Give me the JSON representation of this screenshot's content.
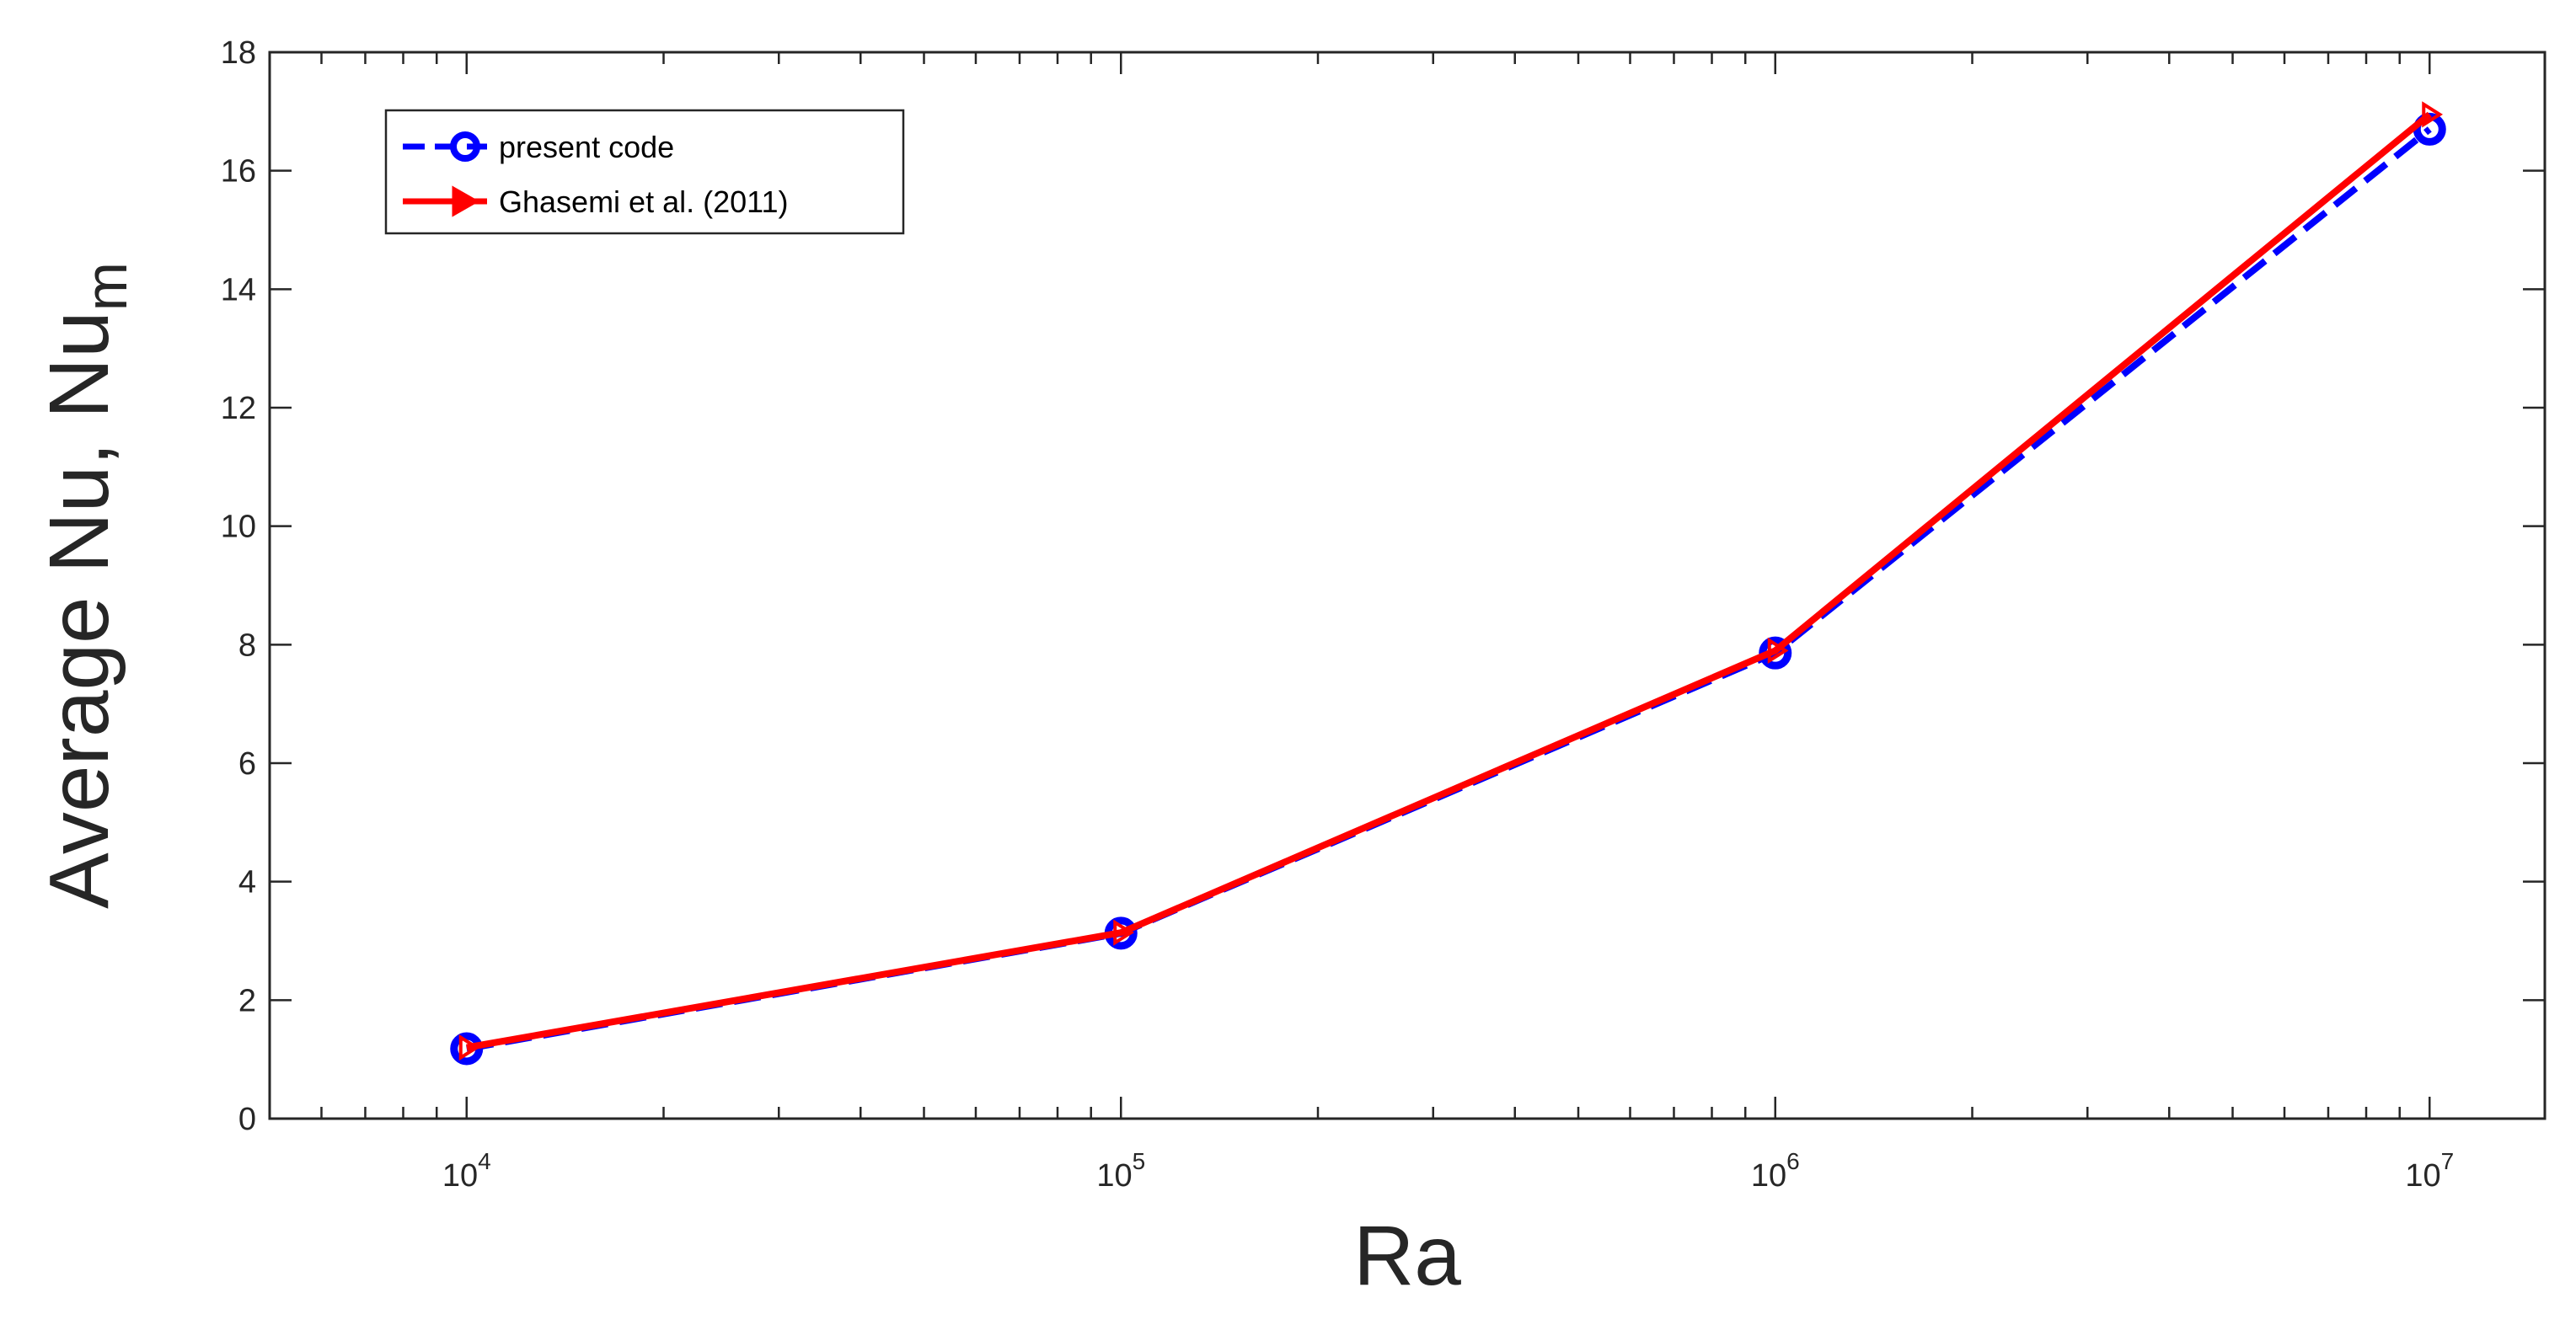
{
  "chart_data": {
    "type": "line",
    "xscale": "log",
    "x": [
      10000,
      100000,
      1000000,
      10000000
    ],
    "xlim": [
      5000,
      15000000
    ],
    "ylim": [
      0,
      18
    ],
    "yticks": [
      0,
      2,
      4,
      6,
      8,
      10,
      12,
      14,
      16,
      18
    ],
    "xticks": [
      {
        "value": 10000,
        "base": "10",
        "exp": "4"
      },
      {
        "value": 100000,
        "base": "10",
        "exp": "5"
      },
      {
        "value": 1000000,
        "base": "10",
        "exp": "6"
      },
      {
        "value": 10000000,
        "base": "10",
        "exp": "7"
      }
    ],
    "xlabel": "Ra",
    "ylabel": {
      "main": "Average Nu, Nu",
      "sub": "m"
    },
    "legend_placement": "top-left",
    "grid": false,
    "series": [
      {
        "name": "present code",
        "values": [
          1.18,
          3.13,
          7.86,
          16.7
        ],
        "color": "#0000ff",
        "line": "dashed",
        "marker": "circle"
      },
      {
        "name": "Ghasemi et al. (2011)",
        "values": [
          1.2,
          3.14,
          7.9,
          16.95
        ],
        "color": "#ff0000",
        "line": "solid",
        "marker": "triangle-right"
      }
    ]
  }
}
